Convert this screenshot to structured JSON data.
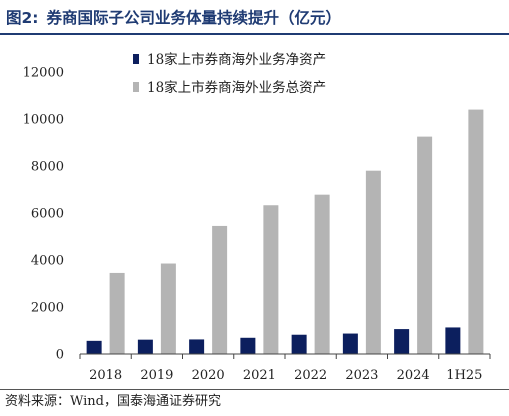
{
  "figure": {
    "number": "图2:",
    "title": "券商国际子公司业务体量持续提升（亿元）",
    "source": "资料来源：Wind，国泰海通证券研究"
  },
  "chart_data": {
    "type": "bar",
    "categories": [
      "2018",
      "2019",
      "2020",
      "2021",
      "2022",
      "2023",
      "2024",
      "1H25"
    ],
    "series": [
      {
        "name": "18家上市券商海外业务净资产",
        "color": "#0c1f5e",
        "values": [
          560,
          610,
          620,
          690,
          820,
          870,
          1060,
          1130
        ]
      },
      {
        "name": "18家上市券商海外业务总资产",
        "color": "#b4b4b4",
        "values": [
          3450,
          3850,
          5450,
          6330,
          6780,
          7800,
          9250,
          10400
        ]
      }
    ],
    "ylim": [
      0,
      12000
    ],
    "yticks": [
      "0",
      "2000",
      "4000",
      "6000",
      "8000",
      "10000",
      "12000"
    ],
    "legend_position": "top-left",
    "grid": false
  }
}
